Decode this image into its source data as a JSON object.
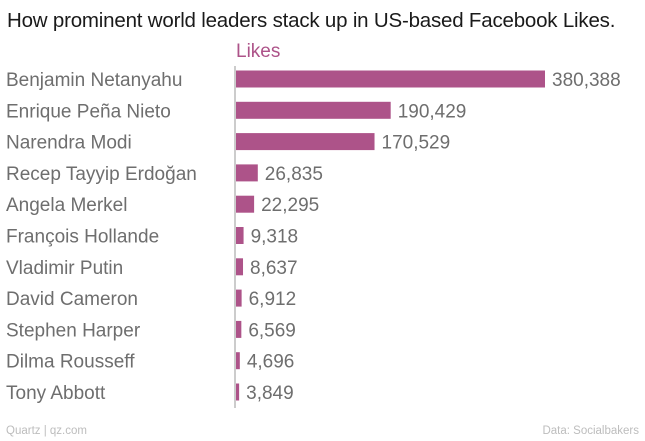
{
  "chart_data": {
    "type": "bar",
    "orientation": "horizontal",
    "title": "How prominent world leaders stack up in US-based Facebook Likes.",
    "series": [
      {
        "name": "Likes",
        "color": "#ad5389",
        "values": [
          380388,
          190429,
          170529,
          26835,
          22295,
          9318,
          8637,
          6912,
          6569,
          4696,
          3849
        ],
        "labels": [
          "380,388",
          "190,429",
          "170,529",
          "26,835",
          "22,295",
          "9,318",
          "8,637",
          "6,912",
          "6,569",
          "4,696",
          "3,849"
        ]
      }
    ],
    "categories": [
      "Benjamin Netanyahu",
      "Enrique Peña Nieto",
      "Narendra Modi",
      "Recep Tayyip Erdoğan",
      "Angela Merkel",
      "François Hollande",
      "Vladimir Putin",
      "David Cameron",
      "Stephen Harper",
      "Dilma Rousseff",
      "Tony Abbott"
    ],
    "xlim": [
      0,
      380388
    ],
    "grid": false,
    "legend": "top"
  },
  "footer": {
    "credit": "Quartz | qz.com",
    "source": "Data: Socialbakers"
  }
}
